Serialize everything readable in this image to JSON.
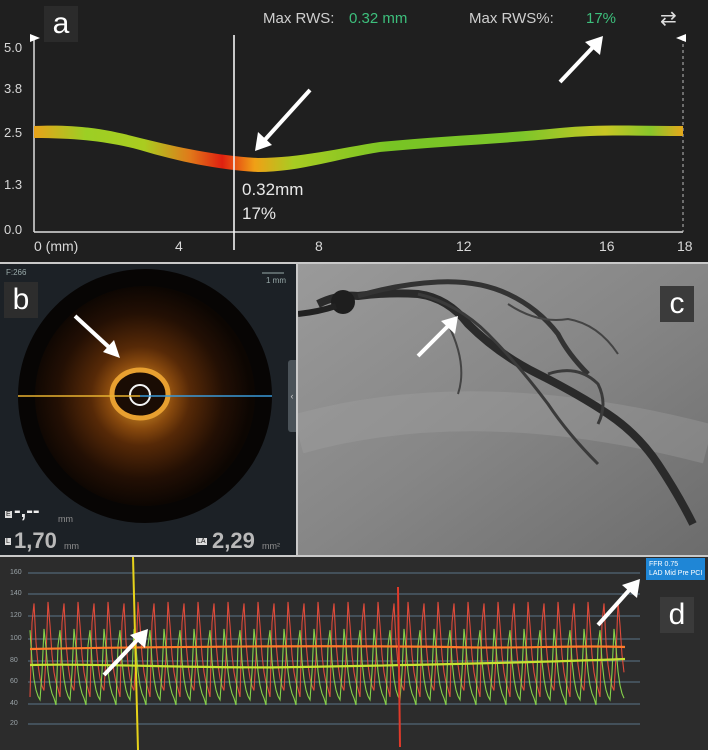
{
  "panel_a": {
    "letter": "a",
    "max_rws_label": "Max RWS:",
    "max_rws_value": "0.32 mm",
    "max_rws_pct_label": "Max RWS%:",
    "max_rws_pct_value": "17%",
    "swap_icon": "swap-arrows-icon",
    "y_ticks": [
      "5.0",
      "3.8",
      "2.5",
      "1.3",
      "0.0"
    ],
    "x_ticks": [
      "0 (mm)",
      "4",
      "8",
      "12",
      "16",
      "18"
    ],
    "marker_value": "0.32mm",
    "marker_pct": "17%",
    "colors": {
      "value_green": "#3dbf7c"
    }
  },
  "panel_b": {
    "letter": "b",
    "frame_label": "F:266",
    "scale_label": "1 mm",
    "e_badge": "E",
    "l_badge": "L",
    "la_badge": "LA",
    "e_value": "-,--",
    "e_unit": "mm",
    "l_value": "1,70",
    "l_unit": "mm",
    "la_value": "2,29",
    "la_unit": "mm²"
  },
  "panel_c": {
    "letter": "c"
  },
  "panel_d": {
    "letter": "d",
    "ffr_line1": "FFR 0.75",
    "ffr_line2": "LAD Mid Pre PCI",
    "y_ticks": [
      "160",
      "140",
      "120",
      "100",
      "80",
      "60",
      "40",
      "20"
    ]
  }
}
